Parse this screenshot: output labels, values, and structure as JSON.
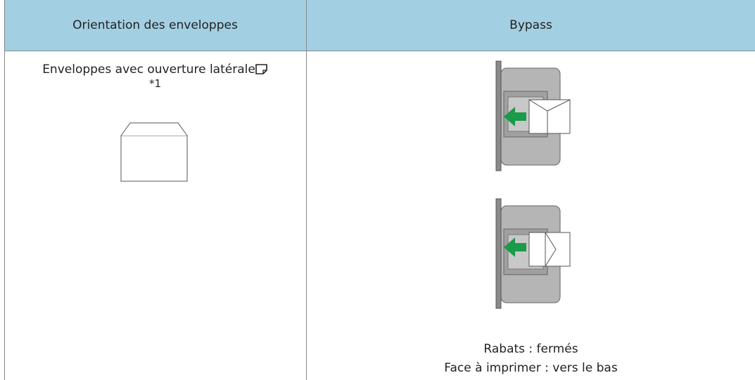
{
  "table": {
    "headers": [
      "Orientation des enveloppes",
      "Bypass"
    ],
    "rows": [
      [
        {
          "text": "Enveloppes avec ouverture latérale",
          "note": "*1"
        },
        {
          "captions": [
            "Rabats : fermés",
            "Face à imprimer : vers le bas"
          ]
        }
      ]
    ]
  }
}
